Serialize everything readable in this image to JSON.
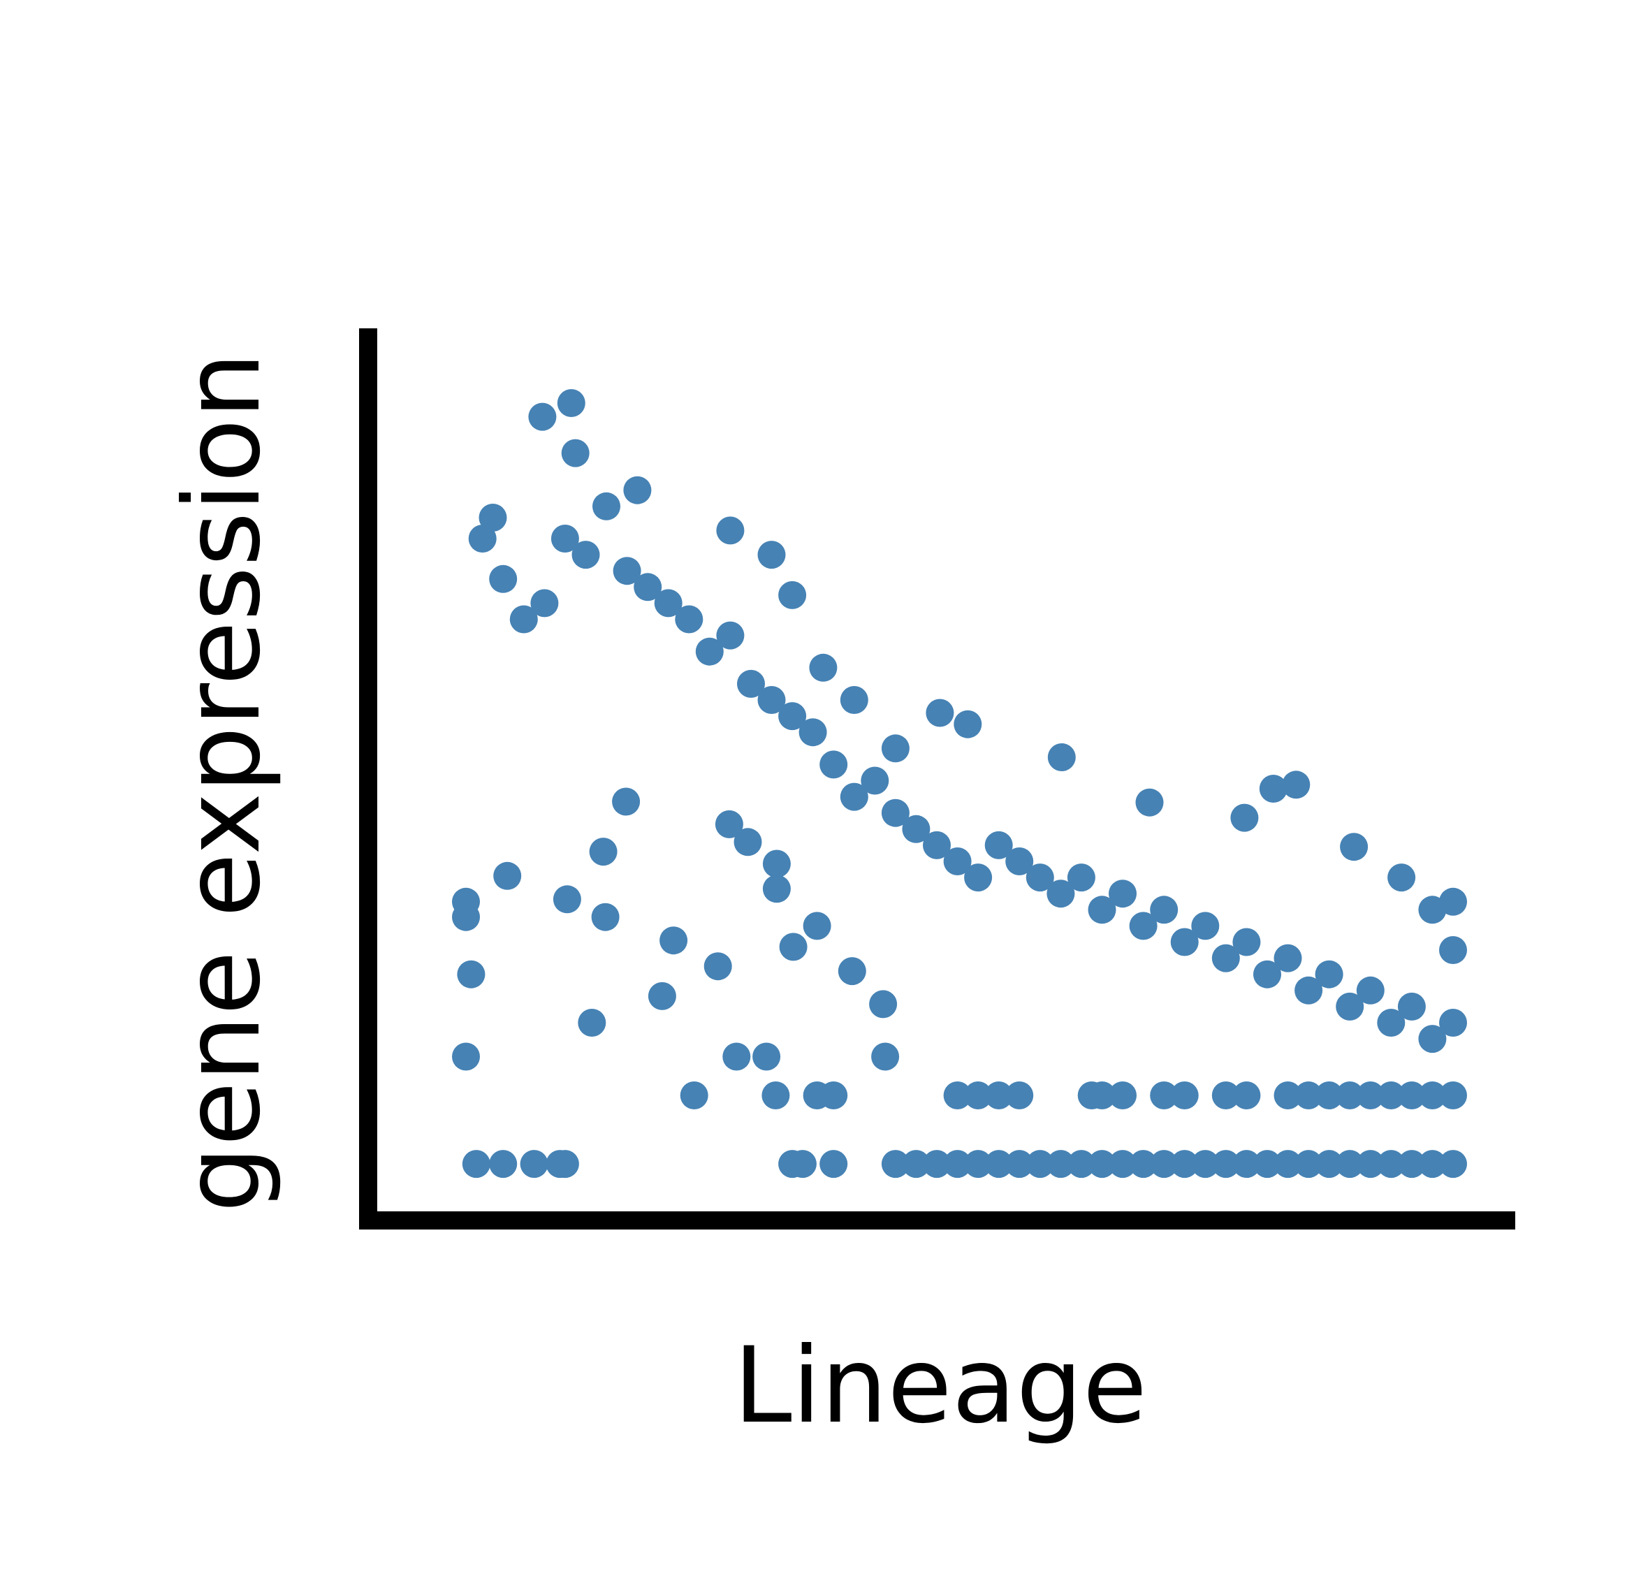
{
  "chart_data": {
    "type": "scatter",
    "title": "",
    "xlabel": "Lineage",
    "ylabel": "gene expression",
    "xlim": [
      0,
      1
    ],
    "ylim": [
      0,
      1
    ],
    "grid": false,
    "legend": "none",
    "ticks_shown": false,
    "marker_color": "#4682b4",
    "series": [
      {
        "color": "#4682b4",
        "points": [
          [
            0.054,
            0.025
          ],
          [
            0.08,
            0.025
          ],
          [
            0.11,
            0.025
          ],
          [
            0.135,
            0.025
          ],
          [
            0.14,
            0.025
          ],
          [
            0.36,
            0.025
          ],
          [
            0.37,
            0.025
          ],
          [
            0.4,
            0.025
          ],
          [
            0.46,
            0.025
          ],
          [
            0.48,
            0.025
          ],
          [
            0.5,
            0.025
          ],
          [
            0.52,
            0.025
          ],
          [
            0.54,
            0.025
          ],
          [
            0.56,
            0.025
          ],
          [
            0.58,
            0.025
          ],
          [
            0.6,
            0.025
          ],
          [
            0.62,
            0.025
          ],
          [
            0.64,
            0.025
          ],
          [
            0.66,
            0.025
          ],
          [
            0.68,
            0.025
          ],
          [
            0.7,
            0.025
          ],
          [
            0.72,
            0.025
          ],
          [
            0.74,
            0.025
          ],
          [
            0.76,
            0.025
          ],
          [
            0.78,
            0.025
          ],
          [
            0.8,
            0.025
          ],
          [
            0.82,
            0.025
          ],
          [
            0.84,
            0.025
          ],
          [
            0.86,
            0.025
          ],
          [
            0.88,
            0.025
          ],
          [
            0.9,
            0.025
          ],
          [
            0.92,
            0.025
          ],
          [
            0.94,
            0.025
          ],
          [
            0.96,
            0.025
          ],
          [
            0.98,
            0.025
          ],
          [
            1.0,
            0.025
          ],
          [
            0.044,
            0.158
          ],
          [
            0.166,
            0.2
          ],
          [
            0.234,
            0.233
          ],
          [
            0.265,
            0.11
          ],
          [
            0.306,
            0.158
          ],
          [
            0.335,
            0.158
          ],
          [
            0.344,
            0.11
          ],
          [
            0.384,
            0.11
          ],
          [
            0.4,
            0.11
          ],
          [
            0.45,
            0.158
          ],
          [
            0.52,
            0.11
          ],
          [
            0.54,
            0.11
          ],
          [
            0.56,
            0.11
          ],
          [
            0.58,
            0.11
          ],
          [
            0.65,
            0.11
          ],
          [
            0.66,
            0.11
          ],
          [
            0.68,
            0.11
          ],
          [
            0.72,
            0.11
          ],
          [
            0.74,
            0.11
          ],
          [
            0.78,
            0.11
          ],
          [
            0.8,
            0.11
          ],
          [
            0.84,
            0.11
          ],
          [
            0.86,
            0.11
          ],
          [
            0.88,
            0.11
          ],
          [
            0.9,
            0.11
          ],
          [
            0.92,
            0.11
          ],
          [
            0.94,
            0.11
          ],
          [
            0.96,
            0.11
          ],
          [
            0.98,
            0.11
          ],
          [
            1.0,
            0.11
          ],
          [
            0.044,
            0.331
          ],
          [
            0.044,
            0.35
          ],
          [
            0.049,
            0.26
          ],
          [
            0.084,
            0.382
          ],
          [
            0.142,
            0.353
          ],
          [
            0.179,
            0.331
          ],
          [
            0.177,
            0.412
          ],
          [
            0.199,
            0.474
          ],
          [
            0.245,
            0.302
          ],
          [
            0.288,
            0.27
          ],
          [
            0.299,
            0.446
          ],
          [
            0.317,
            0.424
          ],
          [
            0.345,
            0.366
          ],
          [
            0.345,
            0.397
          ],
          [
            0.361,
            0.294
          ],
          [
            0.384,
            0.32
          ],
          [
            0.418,
            0.264
          ],
          [
            0.448,
            0.223
          ],
          [
            0.503,
            0.584
          ],
          [
            0.53,
            0.57
          ],
          [
            0.621,
            0.529
          ],
          [
            0.706,
            0.473
          ],
          [
            0.798,
            0.454
          ],
          [
            0.826,
            0.49
          ],
          [
            0.848,
            0.495
          ],
          [
            0.904,
            0.418
          ],
          [
            0.95,
            0.38
          ],
          [
            0.98,
            0.34
          ],
          [
            1.0,
            0.29
          ],
          [
            1.0,
            0.35
          ],
          [
            0.118,
            0.951
          ],
          [
            0.146,
            0.968
          ],
          [
            0.15,
            0.906
          ],
          [
            0.07,
            0.826
          ],
          [
            0.21,
            0.86
          ],
          [
            0.3,
            0.81
          ],
          [
            0.34,
            0.78
          ],
          [
            0.36,
            0.73
          ],
          [
            0.39,
            0.64
          ],
          [
            0.42,
            0.6
          ],
          [
            0.46,
            0.54
          ],
          [
            0.06,
            0.8
          ],
          [
            0.08,
            0.75
          ],
          [
            0.1,
            0.7
          ],
          [
            0.12,
            0.72
          ],
          [
            0.14,
            0.8
          ],
          [
            0.16,
            0.78
          ],
          [
            0.18,
            0.84
          ],
          [
            0.2,
            0.76
          ],
          [
            0.22,
            0.74
          ],
          [
            0.24,
            0.72
          ],
          [
            0.26,
            0.7
          ],
          [
            0.28,
            0.66
          ],
          [
            0.3,
            0.68
          ],
          [
            0.32,
            0.62
          ],
          [
            0.34,
            0.6
          ],
          [
            0.36,
            0.58
          ],
          [
            0.38,
            0.56
          ],
          [
            0.4,
            0.52
          ],
          [
            0.42,
            0.48
          ],
          [
            0.44,
            0.5
          ],
          [
            0.46,
            0.46
          ],
          [
            0.48,
            0.44
          ],
          [
            0.5,
            0.42
          ],
          [
            0.52,
            0.4
          ],
          [
            0.54,
            0.38
          ],
          [
            0.56,
            0.42
          ],
          [
            0.58,
            0.4
          ],
          [
            0.6,
            0.38
          ],
          [
            0.62,
            0.36
          ],
          [
            0.64,
            0.38
          ],
          [
            0.66,
            0.34
          ],
          [
            0.68,
            0.36
          ],
          [
            0.7,
            0.32
          ],
          [
            0.72,
            0.34
          ],
          [
            0.74,
            0.3
          ],
          [
            0.76,
            0.32
          ],
          [
            0.78,
            0.28
          ],
          [
            0.8,
            0.3
          ],
          [
            0.82,
            0.26
          ],
          [
            0.84,
            0.28
          ],
          [
            0.86,
            0.24
          ],
          [
            0.88,
            0.26
          ],
          [
            0.9,
            0.22
          ],
          [
            0.92,
            0.24
          ],
          [
            0.94,
            0.2
          ],
          [
            0.96,
            0.22
          ],
          [
            0.98,
            0.18
          ],
          [
            1.0,
            0.2
          ]
        ]
      }
    ]
  }
}
